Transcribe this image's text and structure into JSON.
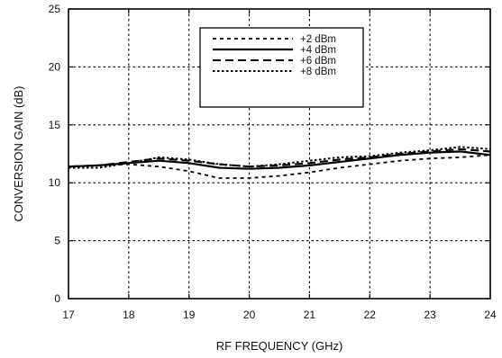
{
  "chart_data": {
    "type": "line",
    "xlabel": "RF FREQUENCY (GHz)",
    "ylabel": "CONVERSION GAIN (dB)",
    "xlim": [
      17,
      24
    ],
    "ylim": [
      0,
      25
    ],
    "x_ticks": [
      17,
      18,
      19,
      20,
      21,
      22,
      23,
      24
    ],
    "y_ticks": [
      0,
      5,
      10,
      15,
      20,
      25
    ],
    "grid": true,
    "legend_position": "top-center",
    "series": [
      {
        "name": "+2 dBm",
        "dash": "short-dash",
        "x": [
          17,
          17.5,
          18,
          18.5,
          19,
          19.5,
          20,
          20.5,
          21,
          21.5,
          22,
          22.5,
          23,
          23.5,
          24
        ],
        "y": [
          11.4,
          11.5,
          11.6,
          11.4,
          11.0,
          10.4,
          10.4,
          10.6,
          10.9,
          11.3,
          11.6,
          11.9,
          12.1,
          12.2,
          12.4
        ]
      },
      {
        "name": "+4 dBm",
        "dash": "solid",
        "x": [
          17,
          17.5,
          18,
          18.5,
          19,
          19.5,
          20,
          20.5,
          21,
          21.5,
          22,
          22.5,
          23,
          23.5,
          24
        ],
        "y": [
          11.4,
          11.5,
          11.7,
          11.9,
          11.7,
          11.3,
          11.2,
          11.3,
          11.5,
          11.8,
          12.1,
          12.4,
          12.6,
          12.7,
          12.4
        ]
      },
      {
        "name": "+6 dBm",
        "dash": "long-dash",
        "x": [
          17,
          17.5,
          18,
          18.5,
          19,
          19.5,
          20,
          20.5,
          21,
          21.5,
          22,
          22.5,
          23,
          23.5,
          24
        ],
        "y": [
          11.4,
          11.5,
          11.8,
          12.1,
          11.9,
          11.6,
          11.4,
          11.5,
          11.7,
          12.0,
          12.2,
          12.5,
          12.7,
          12.9,
          12.7
        ]
      },
      {
        "name": "+8 dBm",
        "dash": "dotted",
        "x": [
          17,
          17.5,
          18,
          18.5,
          19,
          19.5,
          20,
          20.5,
          21,
          21.5,
          22,
          22.5,
          23,
          23.5,
          24
        ],
        "y": [
          11.3,
          11.3,
          11.7,
          12.2,
          12.0,
          11.6,
          11.4,
          11.6,
          11.9,
          12.2,
          12.3,
          12.6,
          12.8,
          13.1,
          12.9
        ]
      }
    ]
  }
}
